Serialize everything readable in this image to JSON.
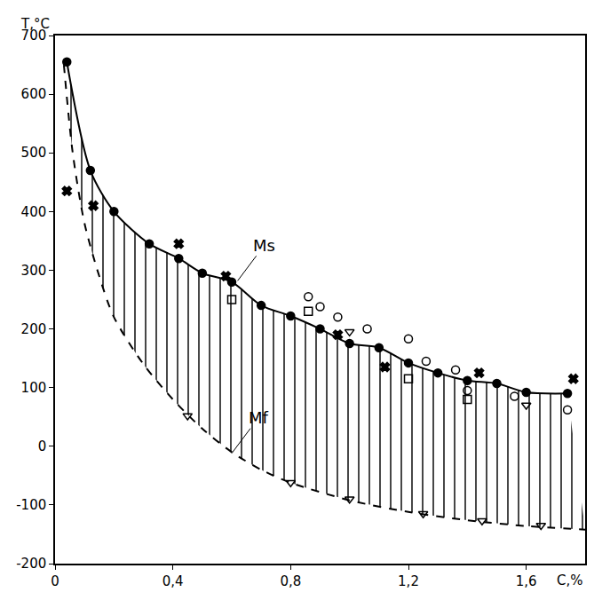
{
  "chart_data": {
    "type": "scatter",
    "x_label": "C,%",
    "y_label": "T,°C",
    "xlim": [
      0,
      1.8
    ],
    "ylim": [
      -200,
      700
    ],
    "xticks": [
      0,
      {
        "value": 0.4,
        "label": "0,4"
      },
      {
        "value": 0.8,
        "label": "0,8"
      },
      {
        "value": 1.2,
        "label": "1,2"
      },
      {
        "value": 1.6,
        "label": "1,6"
      }
    ],
    "yticks": [
      -200,
      -100,
      0,
      100,
      200,
      300,
      400,
      500,
      600,
      700
    ],
    "grid": false,
    "color": "#000000",
    "series": [
      {
        "name": "Mf",
        "type": "line",
        "line_style": "dashed",
        "marker": "none",
        "x": [
          0.03,
          0.06,
          0.1,
          0.15,
          0.2,
          0.3,
          0.4,
          0.5,
          0.6,
          0.7,
          0.8,
          1.0,
          1.2,
          1.4,
          1.6,
          1.8
        ],
        "values": [
          650,
          500,
          380,
          290,
          220,
          140,
          80,
          30,
          -10,
          -40,
          -62,
          -92,
          -112,
          -126,
          -136,
          -142
        ]
      },
      {
        "name": "Ms",
        "type": "line",
        "line_style": "solid",
        "marker": "circle",
        "x": [
          0.04,
          0.12,
          0.2,
          0.32,
          0.42,
          0.5,
          0.6,
          0.7,
          0.8,
          0.9,
          1.0,
          1.1,
          1.2,
          1.3,
          1.4,
          1.5,
          1.6,
          1.74
        ],
        "values": [
          655,
          470,
          400,
          345,
          320,
          295,
          280,
          240,
          222,
          200,
          175,
          168,
          142,
          125,
          112,
          107,
          92,
          90
        ]
      },
      {
        "type": "scatter",
        "line_style": "none",
        "marker": "x",
        "x": [
          0.04,
          0.13,
          0.42,
          0.58,
          0.96,
          1.12,
          1.44,
          1.76
        ],
        "values": [
          435,
          410,
          345,
          290,
          190,
          135,
          125,
          115
        ]
      },
      {
        "type": "scatter",
        "line_style": "none",
        "marker": "circle-open",
        "x": [
          0.86,
          0.9,
          0.96,
          1.06,
          1.2,
          1.26,
          1.36,
          1.4,
          1.56,
          1.74
        ],
        "values": [
          255,
          238,
          220,
          200,
          183,
          145,
          130,
          95,
          85,
          62
        ]
      },
      {
        "type": "scatter",
        "line_style": "none",
        "marker": "square-open",
        "x": [
          0.6,
          0.86,
          1.2,
          1.4
        ],
        "values": [
          250,
          230,
          115,
          80
        ]
      },
      {
        "type": "scatter",
        "line_style": "none",
        "marker": "triangle-down-open",
        "x": [
          1.0,
          1.6,
          0.45,
          0.8,
          1.0,
          1.25,
          1.45,
          1.65
        ],
        "values": [
          195,
          70,
          52,
          -62,
          -90,
          -115,
          -127,
          -135
        ]
      }
    ],
    "annotations": [
      {
        "text": "Ms",
        "x": 0.62,
        "y": 282
      },
      {
        "text": "Mf",
        "x": 0.6,
        "y": -12
      }
    ]
  }
}
